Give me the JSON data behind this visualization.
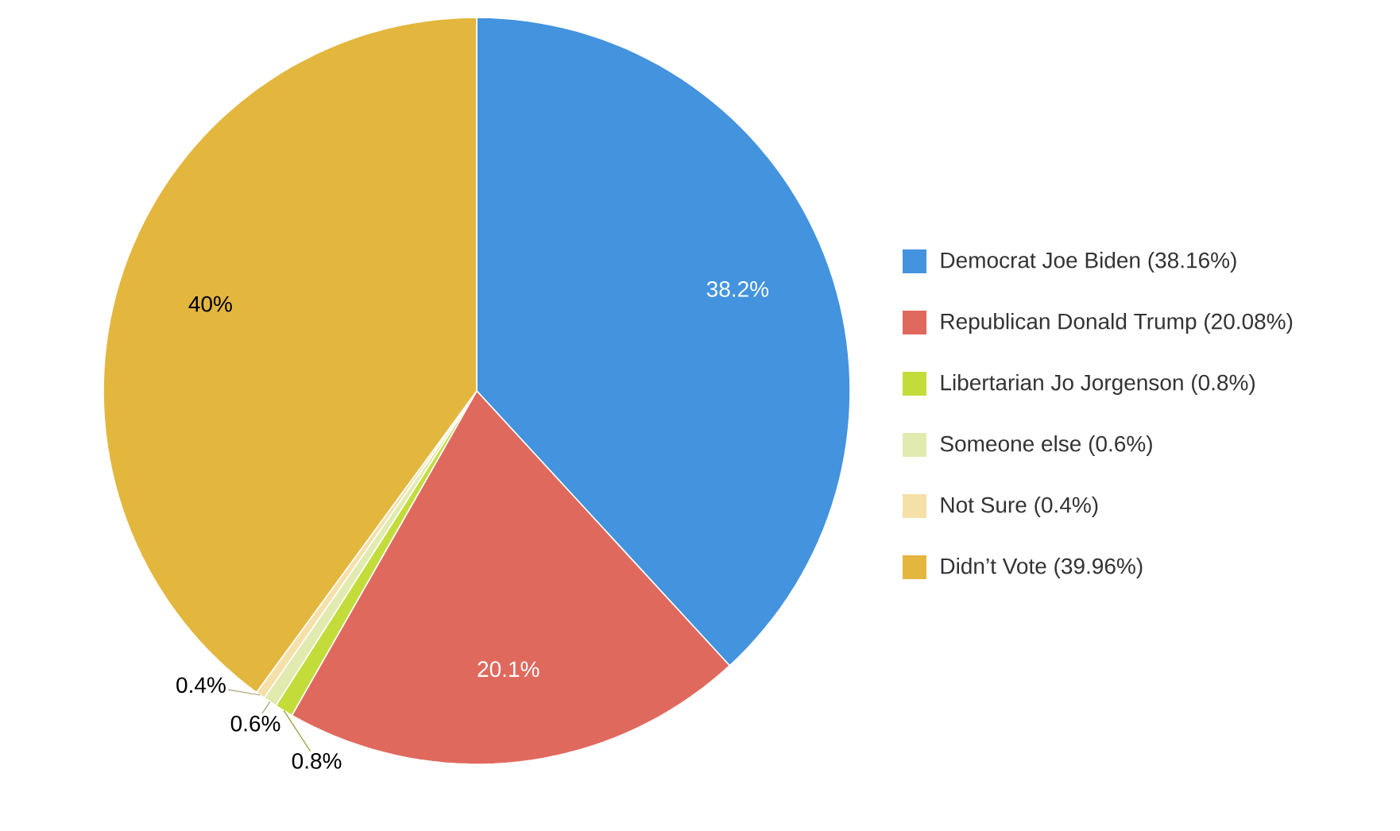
{
  "chart_data": {
    "type": "pie",
    "categories": [
      "Democrat Joe Biden (38.16%)",
      "Republican Donald Trump (20.08%)",
      "Libertarian Jo Jorgenson (0.8%)",
      "Someone else (0.6%)",
      "Not Sure (0.4%)",
      "Didn’t Vote (39.96%)"
    ],
    "values": [
      38.16,
      20.08,
      0.8,
      0.6,
      0.4,
      39.96
    ],
    "colors": [
      "#4393de",
      "#e0695e",
      "#c3dc3a",
      "#e1ebb0",
      "#f6e0a9",
      "#e3b63e"
    ],
    "value_labels": [
      "38.2%",
      "20.1%",
      "0.8%",
      "0.6%",
      "0.4%",
      "40%"
    ],
    "legend": "right"
  }
}
